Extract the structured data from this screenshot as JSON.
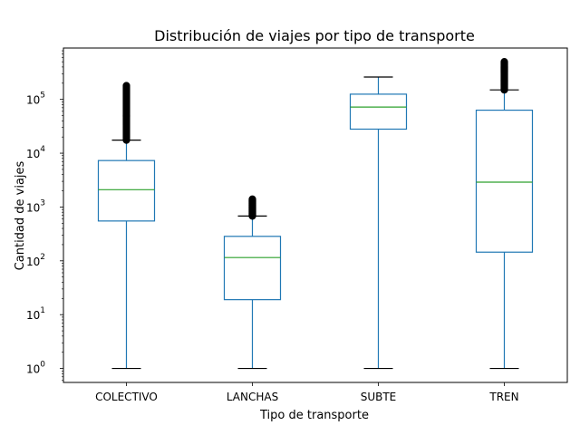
{
  "chart_data": {
    "type": "box",
    "title": "Distribución de viajes por tipo de transporte",
    "xlabel": "Tipo de transporte",
    "ylabel": "Cantidad de viajes",
    "yscale": "log",
    "ylim": [
      0.55,
      900000
    ],
    "grid": false,
    "categories": [
      "COLECTIVO",
      "LANCHAS",
      "SUBTE",
      "TREN"
    ],
    "boxes": [
      {
        "category": "COLECTIVO",
        "whisker_low": 1,
        "q1": 550,
        "median": 2100,
        "q3": 7300,
        "whisker_high": 17500,
        "outliers_min": 17500,
        "outliers_max": 180000
      },
      {
        "category": "LANCHAS",
        "whisker_low": 1,
        "q1": 19,
        "median": 115,
        "q3": 285,
        "whisker_high": 680,
        "outliers_min": 680,
        "outliers_max": 1400
      },
      {
        "category": "SUBTE",
        "whisker_low": 1,
        "q1": 28000,
        "median": 72000,
        "q3": 125000,
        "whisker_high": 260000,
        "outliers_min": null,
        "outliers_max": null
      },
      {
        "category": "TREN",
        "whisker_low": 1,
        "q1": 145,
        "median": 2900,
        "q3": 63000,
        "whisker_high": 150000,
        "outliers_min": 150000,
        "outliers_max": 500000
      }
    ],
    "y_ticks": [
      {
        "value": 1,
        "base": "10",
        "exp": "0"
      },
      {
        "value": 10,
        "base": "10",
        "exp": "1"
      },
      {
        "value": 100,
        "base": "10",
        "exp": "2"
      },
      {
        "value": 1000,
        "base": "10",
        "exp": "3"
      },
      {
        "value": 10000,
        "base": "10",
        "exp": "4"
      },
      {
        "value": 100000,
        "base": "10",
        "exp": "5"
      }
    ],
    "colors": {
      "box": "#1f77b4",
      "median": "#2ca02c",
      "flier": "#000000"
    }
  }
}
